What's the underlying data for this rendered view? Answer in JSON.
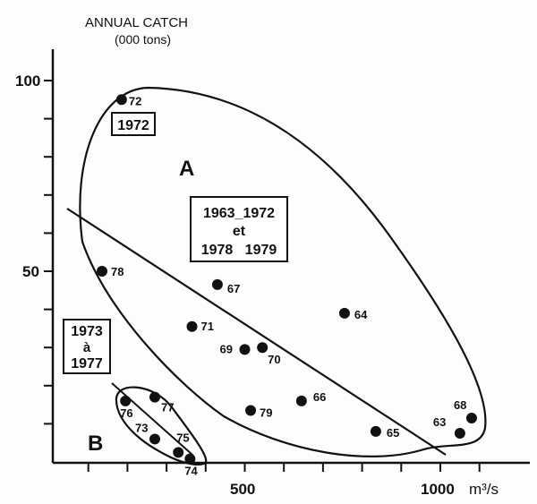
{
  "chart_data": {
    "type": "scatter",
    "title": "",
    "ylabel": "ANNUAL CATCH",
    "ylabel_unit": "(000 tons)",
    "xlabel": "m³/s",
    "xlim": [
      10,
      1220
    ],
    "ylim": [
      0,
      108
    ],
    "grid": false,
    "y_ticks": [
      10,
      20,
      30,
      40,
      50,
      60,
      70,
      80,
      90,
      100
    ],
    "y_tick_labels": {
      "100": "100",
      "50": "50"
    },
    "x_ticks": [
      100,
      200,
      300,
      400,
      500,
      600,
      700,
      800,
      900,
      1000,
      1100
    ],
    "x_tick_labels": {
      "500": "500",
      "1000": "1000"
    },
    "points": [
      {
        "label": "72",
        "x": 185,
        "y": 95
      },
      {
        "label": "78",
        "x": 135,
        "y": 50
      },
      {
        "label": "67",
        "x": 430,
        "y": 46.5
      },
      {
        "label": "64",
        "x": 755,
        "y": 39
      },
      {
        "label": "71",
        "x": 365,
        "y": 35.5
      },
      {
        "label": "69",
        "x": 500,
        "y": 29.5
      },
      {
        "label": "70",
        "x": 545,
        "y": 30
      },
      {
        "label": "66",
        "x": 645,
        "y": 16
      },
      {
        "label": "79",
        "x": 515,
        "y": 13.5
      },
      {
        "label": "65",
        "x": 835,
        "y": 8
      },
      {
        "label": "63",
        "x": 1050,
        "y": 7.5
      },
      {
        "label": "68",
        "x": 1080,
        "y": 11.5
      },
      {
        "label": "76",
        "x": 195,
        "y": 16
      },
      {
        "label": "77",
        "x": 270,
        "y": 17
      },
      {
        "label": "73",
        "x": 270,
        "y": 6
      },
      {
        "label": "75",
        "x": 330,
        "y": 2.5
      },
      {
        "label": "74",
        "x": 360,
        "y": 0.8
      }
    ],
    "groups": {
      "A": "A",
      "B": "B"
    },
    "annotations": {
      "box_1972": "1972",
      "box_a_line1": "1963_1972",
      "box_a_line2": "et",
      "box_a_line3": "1978   1979",
      "box_b_line1": "1973",
      "box_b_line2": "à",
      "box_b_line3": "1977"
    }
  }
}
